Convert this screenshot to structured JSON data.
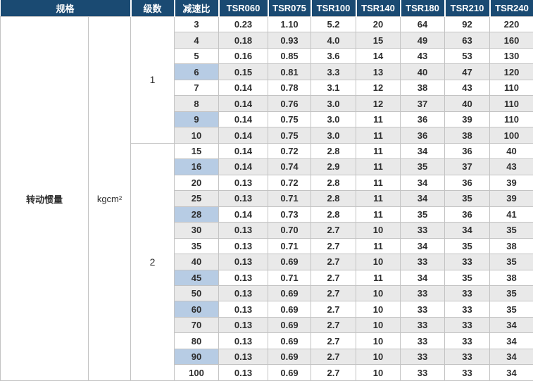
{
  "colors": {
    "header_bg": "#1a4a72",
    "header_text": "#ffffff",
    "row_alt": "#e9e9e9",
    "highlight_blue": "#b7cce4",
    "grid": "#c3c3c3",
    "text": "#2e2e2e"
  },
  "table": {
    "header": {
      "spec": "规格",
      "stages": "级数",
      "ratio": "减速比",
      "models": [
        "TSR060",
        "TSR075",
        "TSR100",
        "TSR140",
        "TSR180",
        "TSR210",
        "TSR240"
      ]
    },
    "spec_label": "转动惯量",
    "unit": "kgcm²",
    "sections": [
      {
        "stage": "1",
        "rows": [
          {
            "ratio": "3",
            "highlight": false,
            "values": [
              "0.23",
              "1.10",
              "5.2",
              "20",
              "64",
              "92",
              "220"
            ]
          },
          {
            "ratio": "4",
            "highlight": false,
            "values": [
              "0.18",
              "0.93",
              "4.0",
              "15",
              "49",
              "63",
              "160"
            ]
          },
          {
            "ratio": "5",
            "highlight": false,
            "values": [
              "0.16",
              "0.85",
              "3.6",
              "14",
              "43",
              "53",
              "130"
            ]
          },
          {
            "ratio": "6",
            "highlight": true,
            "values": [
              "0.15",
              "0.81",
              "3.3",
              "13",
              "40",
              "47",
              "120"
            ]
          },
          {
            "ratio": "7",
            "highlight": false,
            "values": [
              "0.14",
              "0.78",
              "3.1",
              "12",
              "38",
              "43",
              "110"
            ]
          },
          {
            "ratio": "8",
            "highlight": false,
            "values": [
              "0.14",
              "0.76",
              "3.0",
              "12",
              "37",
              "40",
              "110"
            ]
          },
          {
            "ratio": "9",
            "highlight": true,
            "values": [
              "0.14",
              "0.75",
              "3.0",
              "11",
              "36",
              "39",
              "110"
            ]
          },
          {
            "ratio": "10",
            "highlight": false,
            "values": [
              "0.14",
              "0.75",
              "3.0",
              "11",
              "36",
              "38",
              "100"
            ]
          }
        ]
      },
      {
        "stage": "2",
        "rows": [
          {
            "ratio": "15",
            "highlight": false,
            "values": [
              "0.14",
              "0.72",
              "2.8",
              "11",
              "34",
              "36",
              "40"
            ]
          },
          {
            "ratio": "16",
            "highlight": true,
            "values": [
              "0.14",
              "0.74",
              "2.9",
              "11",
              "35",
              "37",
              "43"
            ]
          },
          {
            "ratio": "20",
            "highlight": false,
            "values": [
              "0.13",
              "0.72",
              "2.8",
              "11",
              "34",
              "36",
              "39"
            ]
          },
          {
            "ratio": "25",
            "highlight": false,
            "values": [
              "0.13",
              "0.71",
              "2.8",
              "11",
              "34",
              "35",
              "39"
            ]
          },
          {
            "ratio": "28",
            "highlight": true,
            "values": [
              "0.14",
              "0.73",
              "2.8",
              "11",
              "35",
              "36",
              "41"
            ]
          },
          {
            "ratio": "30",
            "highlight": false,
            "values": [
              "0.13",
              "0.70",
              "2.7",
              "10",
              "33",
              "34",
              "35"
            ]
          },
          {
            "ratio": "35",
            "highlight": false,
            "values": [
              "0.13",
              "0.71",
              "2.7",
              "11",
              "34",
              "35",
              "38"
            ]
          },
          {
            "ratio": "40",
            "highlight": false,
            "values": [
              "0.13",
              "0.69",
              "2.7",
              "10",
              "33",
              "33",
              "35"
            ]
          },
          {
            "ratio": "45",
            "highlight": true,
            "values": [
              "0.13",
              "0.71",
              "2.7",
              "11",
              "34",
              "35",
              "38"
            ]
          },
          {
            "ratio": "50",
            "highlight": false,
            "values": [
              "0.13",
              "0.69",
              "2.7",
              "10",
              "33",
              "33",
              "35"
            ]
          },
          {
            "ratio": "60",
            "highlight": true,
            "values": [
              "0.13",
              "0.69",
              "2.7",
              "10",
              "33",
              "33",
              "35"
            ]
          },
          {
            "ratio": "70",
            "highlight": false,
            "values": [
              "0.13",
              "0.69",
              "2.7",
              "10",
              "33",
              "33",
              "34"
            ]
          },
          {
            "ratio": "80",
            "highlight": false,
            "values": [
              "0.13",
              "0.69",
              "2.7",
              "10",
              "33",
              "33",
              "34"
            ]
          },
          {
            "ratio": "90",
            "highlight": true,
            "values": [
              "0.13",
              "0.69",
              "2.7",
              "10",
              "33",
              "33",
              "34"
            ]
          },
          {
            "ratio": "100",
            "highlight": false,
            "values": [
              "0.13",
              "0.69",
              "2.7",
              "10",
              "33",
              "33",
              "34"
            ]
          }
        ]
      }
    ]
  }
}
